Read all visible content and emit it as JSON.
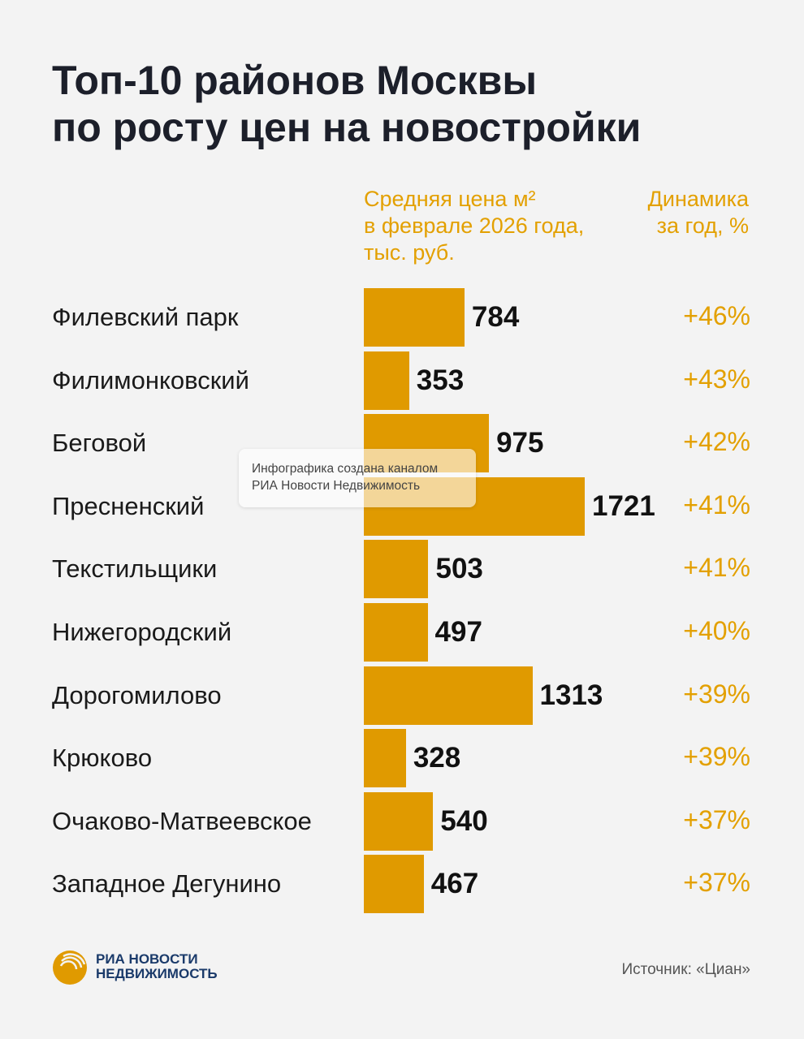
{
  "title": [
    "Топ-10 районов Москвы",
    "по росту цен на новостройки"
  ],
  "column_headers": {
    "price": [
      "Средняя цена м²",
      "в феврале 2026 года,",
      "тыс. руб."
    ],
    "change": [
      "Динамика",
      "за год, %"
    ]
  },
  "chart_data": {
    "type": "bar",
    "orientation": "horizontal",
    "categories": [
      "Филевский парк",
      "Филимонковский",
      "Беговой",
      "Пресненский",
      "Текстильщики",
      "Нижегородский",
      "Дорогомилово",
      "Крюково",
      "Очаково-Матвеевское",
      "Западное Дегунино"
    ],
    "values": [
      784,
      353,
      975,
      1721,
      503,
      497,
      1313,
      328,
      540,
      467
    ],
    "value_labels": [
      "784",
      "353",
      "975",
      "1721",
      "503",
      "497",
      "1313",
      "328",
      "540",
      "467"
    ],
    "change_labels": [
      "+46%",
      "+43%",
      "+42%",
      "+41%",
      "+41%",
      "+40%",
      "+39%",
      "+39%",
      "+37%",
      "+37%"
    ],
    "change_values": [
      46,
      43,
      42,
      41,
      41,
      40,
      39,
      39,
      37,
      37
    ],
    "xlim": [
      0,
      1721
    ],
    "grid": false,
    "bar_color": "#e09a00",
    "change_color": "#e3a000"
  },
  "overlay": [
    "Инфографика создана каналом",
    "РИА Новости Недвижимость"
  ],
  "logo": {
    "text": [
      "РИА НОВОСТИ",
      "НЕДВИЖИМОСТЬ"
    ],
    "color": "#e09a00"
  },
  "source": "Источник: «Циан»"
}
